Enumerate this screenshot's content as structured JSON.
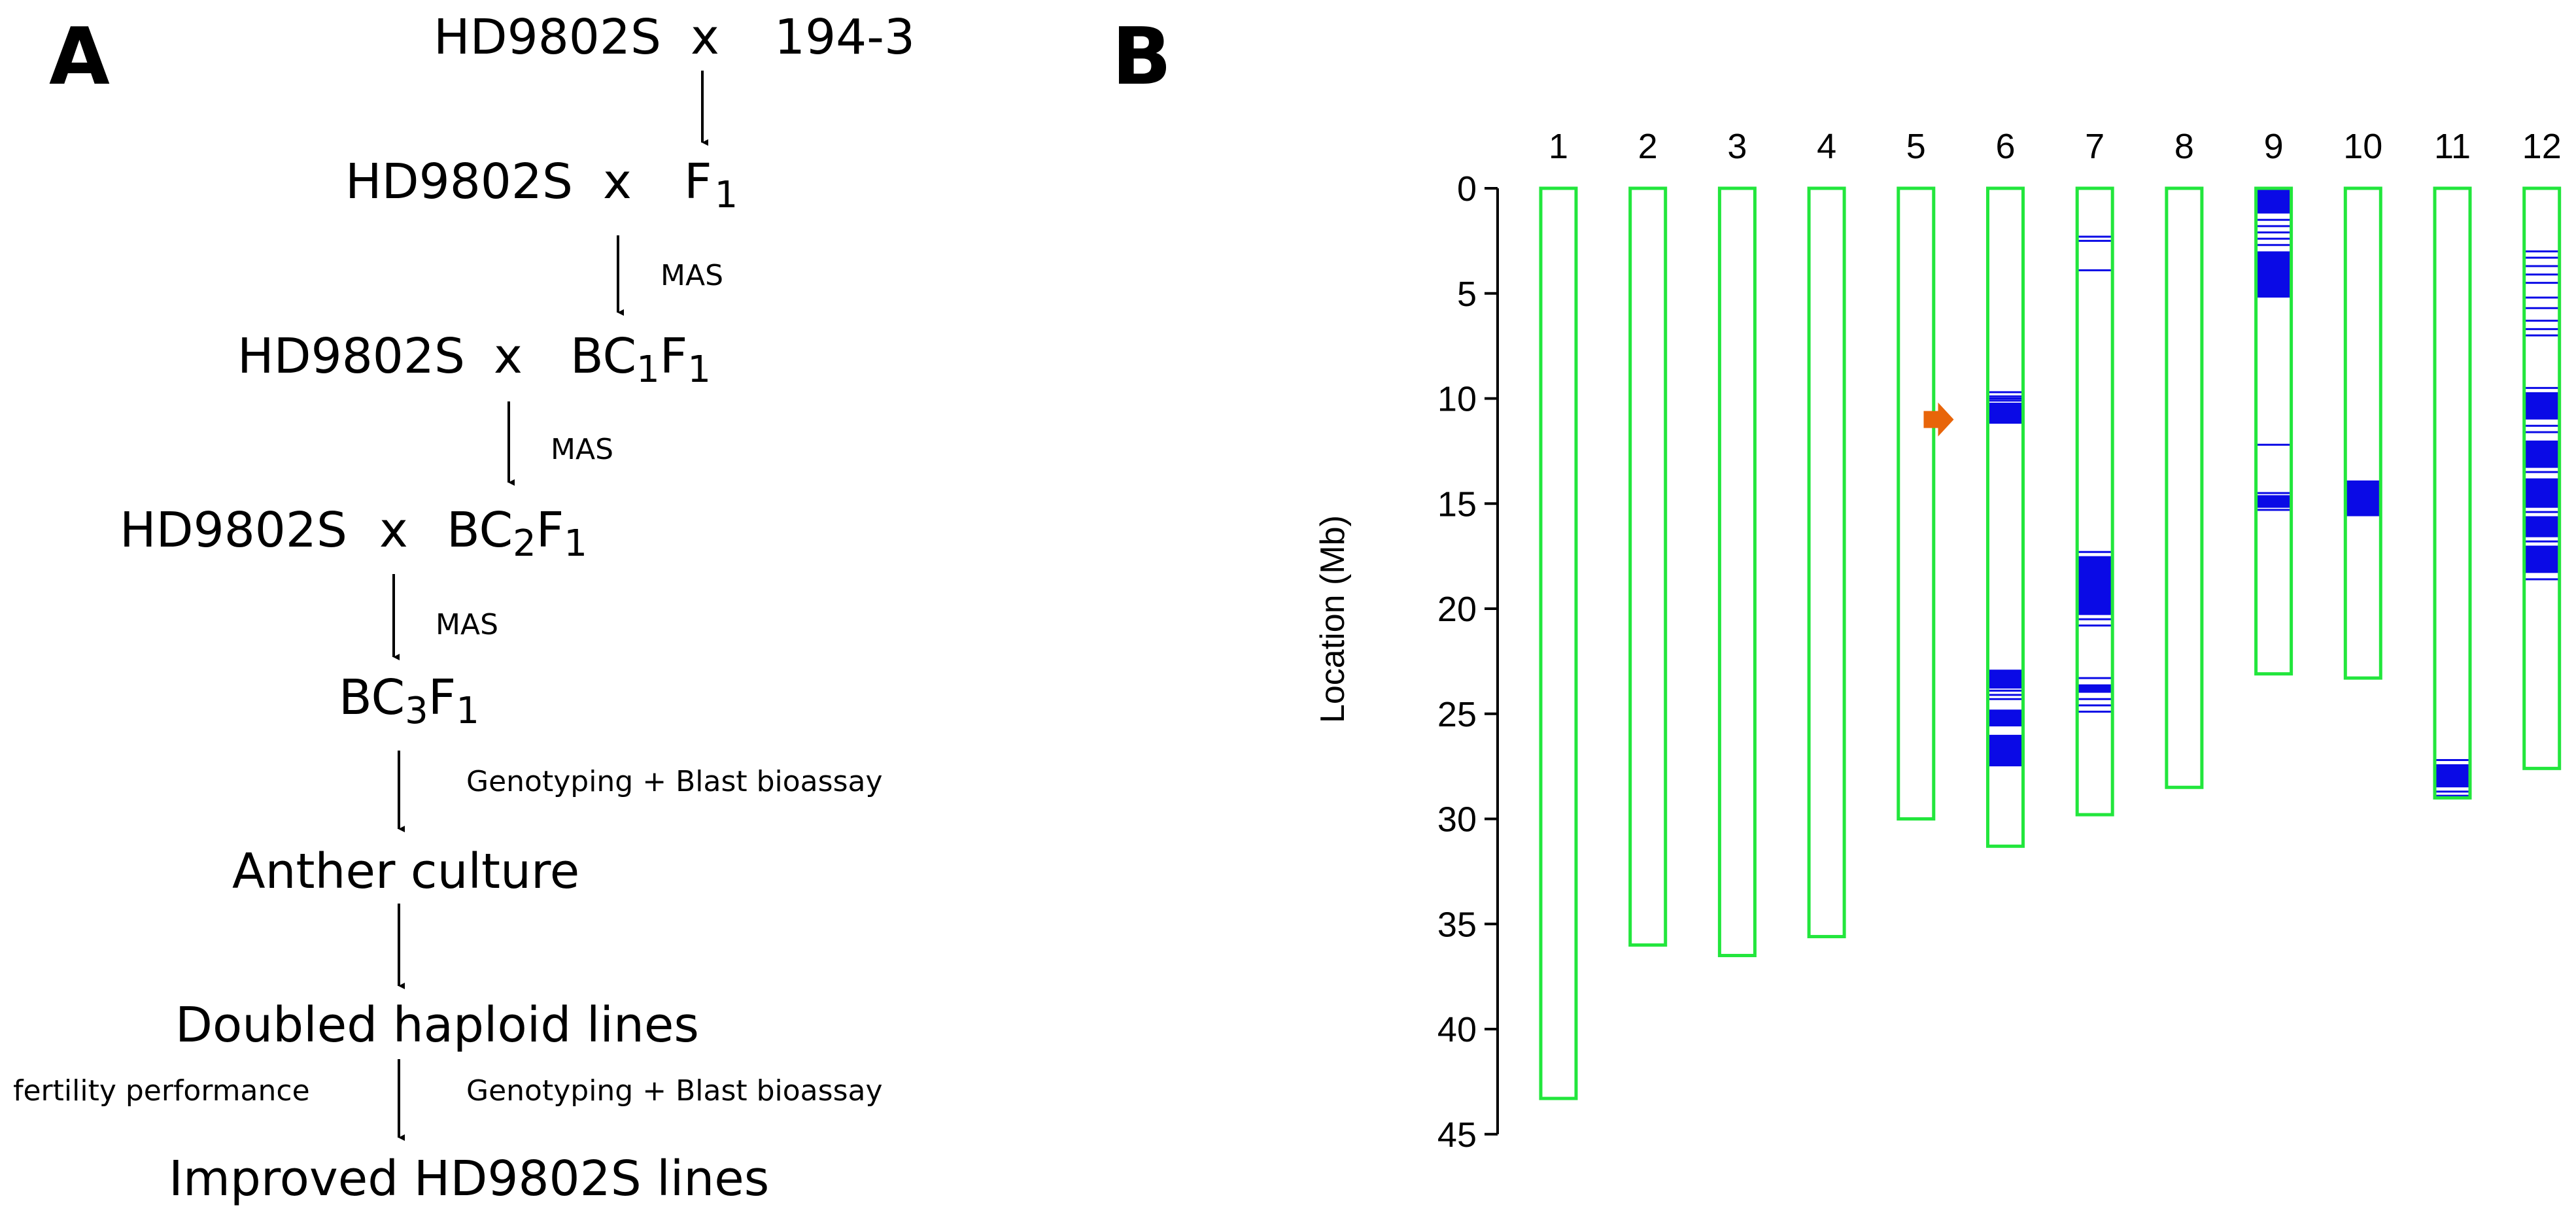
{
  "panels": {
    "a_label": "A",
    "b_label": "B"
  },
  "flowchart": {
    "row1": {
      "left": "HD9802S",
      "cross": "x",
      "right": "194-3"
    },
    "row2": {
      "left": "HD9802S",
      "cross": "x",
      "right_base": "F",
      "right_sub": "1"
    },
    "row3": {
      "left": "HD9802S",
      "cross": "x",
      "right_b": "BC",
      "right_b_sub": "1",
      "right_f": "F",
      "right_f_sub": "1"
    },
    "row4": {
      "left": "HD9802S",
      "cross": "x",
      "right_b": "BC",
      "right_b_sub": "2",
      "right_f": "F",
      "right_f_sub": "1"
    },
    "row5": {
      "b": "BC",
      "b_sub": "3",
      "f": "F",
      "f_sub": "1"
    },
    "mas_1": "MAS",
    "mas_2": "MAS",
    "mas_3": "MAS",
    "genotyping_1": "Genotyping + Blast bioassay",
    "anther_culture": "Anther culture",
    "doubled_haploid": "Doubled haploid lines",
    "fertility": "fertility performance",
    "genotyping_2": "Genotyping + Blast bioassay",
    "improved": "Improved HD9802S lines"
  },
  "chart_data": {
    "type": "chromosome-map",
    "ylabel": "Location (Mb)",
    "ylim": [
      0,
      45
    ],
    "yticks": [
      0,
      5,
      10,
      15,
      20,
      25,
      30,
      35,
      40,
      45
    ],
    "arrow_annotation": {
      "chromosome": "6",
      "location_mb": 11.0,
      "color": "#e8650a"
    },
    "colors": {
      "chromosome_outline": "#22e63c",
      "marker": "#0a0ae6"
    },
    "chromosomes": [
      {
        "name": "1",
        "length": 43.3,
        "bands": [],
        "lines": []
      },
      {
        "name": "2",
        "length": 36.0,
        "bands": [],
        "lines": []
      },
      {
        "name": "3",
        "length": 36.5,
        "bands": [],
        "lines": []
      },
      {
        "name": "4",
        "length": 35.6,
        "bands": [],
        "lines": []
      },
      {
        "name": "5",
        "length": 30.0,
        "bands": [],
        "lines": []
      },
      {
        "name": "6",
        "length": 31.3,
        "bands": [
          [
            10.2,
            11.2
          ],
          [
            22.9,
            23.8
          ],
          [
            24.8,
            25.6
          ],
          [
            26.0,
            27.5
          ]
        ],
        "lines": [
          9.7,
          9.9,
          10.0,
          10.1,
          23.9,
          24.1,
          24.3
        ]
      },
      {
        "name": "7",
        "length": 29.8,
        "bands": [
          [
            17.5,
            20.3
          ],
          [
            23.6,
            24.0
          ]
        ],
        "lines": [
          2.3,
          2.5,
          3.9,
          17.3,
          20.5,
          20.8,
          23.3,
          24.3,
          24.6,
          24.9
        ]
      },
      {
        "name": "8",
        "length": 28.5,
        "bands": [],
        "lines": []
      },
      {
        "name": "9",
        "length": 23.1,
        "bands": [
          [
            0.0,
            1.2
          ],
          [
            3.0,
            5.2
          ],
          [
            14.6,
            15.2
          ]
        ],
        "lines": [
          1.5,
          1.8,
          2.1,
          2.4,
          2.7,
          12.2,
          14.5,
          15.3
        ]
      },
      {
        "name": "10",
        "length": 23.3,
        "bands": [
          [
            13.9,
            15.6
          ]
        ],
        "lines": []
      },
      {
        "name": "11",
        "length": 29.0,
        "bands": [
          [
            27.4,
            28.5
          ]
        ],
        "lines": [
          27.2,
          28.7,
          28.9
        ]
      },
      {
        "name": "12",
        "length": 27.6,
        "bands": [
          [
            9.7,
            11.0
          ],
          [
            12.0,
            13.3
          ],
          [
            13.8,
            15.2
          ],
          [
            15.6,
            16.6
          ],
          [
            17.0,
            18.3
          ]
        ],
        "lines": [
          3.0,
          3.3,
          3.7,
          4.1,
          4.5,
          5.2,
          5.7,
          6.3,
          6.7,
          7.0,
          9.5,
          11.3,
          11.6,
          13.5,
          15.4,
          16.8,
          18.6
        ]
      }
    ]
  }
}
